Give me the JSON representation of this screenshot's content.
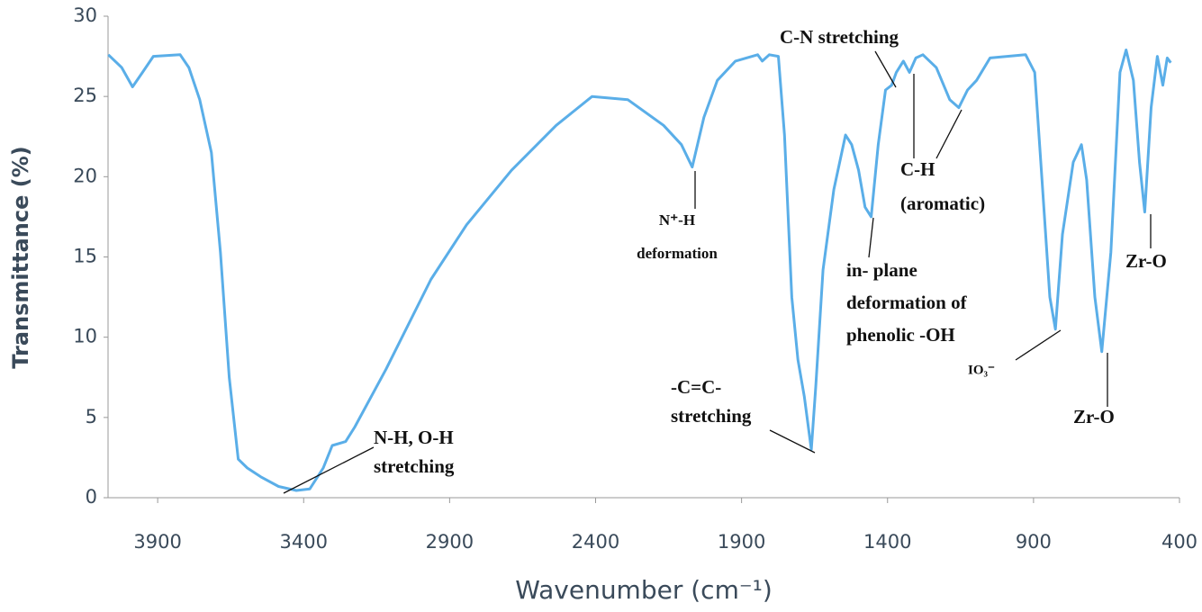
{
  "chart_data": {
    "type": "line",
    "x_label": "Wavenumber (cm⁻¹)",
    "y_label": "Transmittance  (%)",
    "xlim": [
      4070,
      400
    ],
    "ylim": [
      0,
      30
    ],
    "xticks": [
      3900,
      3400,
      2900,
      2400,
      1900,
      1400,
      900,
      400
    ],
    "yticks": [
      0,
      5,
      10,
      15,
      20,
      25,
      30
    ],
    "grid": false,
    "series": [
      {
        "color": "#5aaee8",
        "x": [
          4069,
          4023,
          3986,
          3952,
          3915,
          3823,
          3793,
          3756,
          3716,
          3685,
          3655,
          3624,
          3593,
          3547,
          3486,
          3425,
          3379,
          3333,
          3302,
          3256,
          3225,
          3118,
          2964,
          2842,
          2688,
          2535,
          2412,
          2290,
          2167,
          2106,
          2069,
          2029,
          1983,
          1921,
          1845,
          1829,
          1805,
          1774,
          1753,
          1728,
          1707,
          1685,
          1661,
          1646,
          1621,
          1584,
          1544,
          1523,
          1499,
          1477,
          1456,
          1432,
          1407,
          1386,
          1370,
          1346,
          1325,
          1303,
          1279,
          1233,
          1187,
          1156,
          1126,
          1095,
          1049,
          927,
          896,
          871,
          844,
          825,
          801,
          764,
          736,
          718,
          690,
          666,
          635,
          604,
          583,
          558,
          537,
          519,
          497,
          476,
          457,
          442,
          430
        ],
        "values": [
          27.6,
          26.8,
          25.6,
          26.5,
          27.5,
          27.6,
          26.8,
          24.8,
          21.5,
          15.3,
          7.5,
          2.4,
          1.85,
          1.3,
          0.7,
          0.45,
          0.55,
          1.85,
          3.25,
          3.5,
          4.4,
          8.0,
          13.6,
          17.0,
          20.4,
          23.2,
          25.0,
          24.8,
          23.2,
          22.0,
          20.6,
          23.7,
          26.0,
          27.2,
          27.6,
          27.2,
          27.6,
          27.5,
          22.6,
          12.5,
          8.6,
          6.3,
          3.0,
          6.9,
          14.2,
          19.2,
          22.6,
          22.0,
          20.4,
          18.1,
          17.5,
          22.0,
          25.4,
          25.7,
          26.5,
          27.2,
          26.5,
          27.4,
          27.6,
          26.8,
          24.8,
          24.3,
          25.4,
          26.0,
          27.4,
          27.6,
          26.5,
          19.8,
          12.5,
          10.5,
          16.4,
          20.9,
          22.0,
          19.8,
          12.5,
          9.1,
          15.3,
          26.5,
          27.9,
          26.0,
          20.9,
          17.8,
          24.3,
          27.5,
          25.7,
          27.4,
          27.1
        ]
      }
    ],
    "annotations": [
      {
        "text": [
          "N-H, O-H",
          "stretching"
        ]
      },
      {
        "text": [
          "N⁺-H",
          "deformation"
        ]
      },
      {
        "text": [
          "-C=C-",
          "stretching"
        ]
      },
      {
        "text": [
          "C-N stretching"
        ]
      },
      {
        "text": [
          "C-H",
          "(aromatic)"
        ]
      },
      {
        "text": [
          "in- plane",
          "deformation of",
          "phenolic -OH"
        ]
      },
      {
        "text": [
          "IO₃⁻"
        ]
      },
      {
        "text": [
          "Zr-O"
        ]
      },
      {
        "text": [
          "Zr-O"
        ]
      }
    ]
  }
}
